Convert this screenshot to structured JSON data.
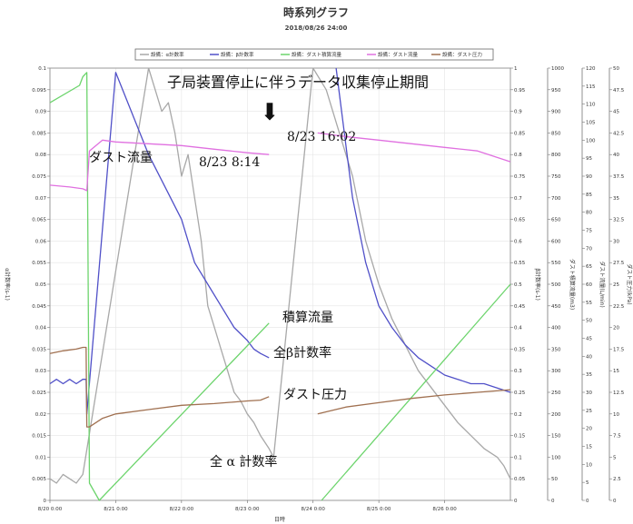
{
  "chart_data": {
    "type": "line",
    "title": "時系列グラフ",
    "subtitle": "2018/08/26 24:00",
    "xlabel": "日時",
    "x_ticks": [
      "8/20 0:00",
      "8/21 0:00",
      "8/22 0:00",
      "8/23 0:00",
      "8/24 0:00",
      "8/25 0:00",
      "8/26 0:00"
    ],
    "x_range_days": [
      20.0,
      27.0
    ],
    "legend_position": "top",
    "grid": true,
    "axes": {
      "alpha": {
        "label": "α計数率(s-1)",
        "range": [
          0,
          0.1
        ],
        "ticks": [
          "0",
          "0.005",
          "0.01",
          "0.015",
          "0.02",
          "0.025",
          "0.03",
          "0.035",
          "0.04",
          "0.045",
          "0.05",
          "0.055",
          "0.06",
          "0.065",
          "0.07",
          "0.075",
          "0.08",
          "0.085",
          "0.09",
          "0.095",
          "0.1"
        ]
      },
      "beta": {
        "label": "β計数率(s-1)",
        "range": [
          0,
          1
        ],
        "ticks": [
          "0",
          "0.05",
          "0.1",
          "0.15",
          "0.2",
          "0.25",
          "0.3",
          "0.35",
          "0.4",
          "0.45",
          "0.5",
          "0.55",
          "0.6",
          "0.65",
          "0.7",
          "0.75",
          "0.8",
          "0.85",
          "0.9",
          "0.95",
          "1"
        ]
      },
      "integrated": {
        "label": "ダスト積算流量(m3)",
        "range": [
          0,
          1000
        ],
        "ticks": [
          "0",
          "50",
          "100",
          "150",
          "200",
          "250",
          "300",
          "350",
          "400",
          "450",
          "500",
          "550",
          "600",
          "650",
          "700",
          "750",
          "800",
          "850",
          "900",
          "950",
          "1000"
        ]
      },
      "flow": {
        "label": "ダスト流量(L/min)",
        "range": [
          0,
          120
        ],
        "ticks": [
          "0",
          "5",
          "10",
          "15",
          "20",
          "25",
          "30",
          "35",
          "40",
          "45",
          "50",
          "55",
          "60",
          "65",
          "70",
          "75",
          "80",
          "85",
          "90",
          "95",
          "100",
          "105",
          "110",
          "115",
          "120"
        ]
      },
      "pressure": {
        "label": "ダスト圧力(kPa)",
        "range": [
          0,
          50
        ],
        "ticks": [
          "0",
          "2.5",
          "5",
          "7.5",
          "10",
          "12.5",
          "15",
          "17.5",
          "20",
          "22.5",
          "25",
          "27.5",
          "30",
          "32.5",
          "35",
          "37.5",
          "40",
          "42.5",
          "45",
          "47.5",
          "50"
        ]
      }
    },
    "series": [
      {
        "name": "設備：α計数率",
        "axis": "alpha",
        "color": "#a8a8a8",
        "x": [
          20.0,
          20.1,
          20.2,
          20.3,
          20.4,
          20.5,
          21.5,
          21.6,
          21.7,
          21.8,
          21.9,
          22.0,
          22.1,
          22.2,
          22.3,
          22.4,
          22.5,
          22.6,
          22.7,
          22.8,
          22.9,
          23.0,
          23.1,
          23.2,
          23.33,
          23.4,
          24.0,
          24.2,
          24.4,
          24.6,
          24.8,
          25.0,
          25.2,
          25.4,
          25.6,
          25.8,
          26.0,
          26.2,
          26.4,
          26.6,
          26.8,
          26.9,
          27.0
        ],
        "y": [
          0.005,
          0.004,
          0.006,
          0.005,
          0.004,
          0.006,
          0.1,
          0.095,
          0.09,
          0.092,
          0.085,
          0.075,
          0.08,
          0.07,
          0.06,
          0.045,
          0.04,
          0.035,
          0.03,
          0.025,
          0.023,
          0.02,
          0.018,
          0.015,
          0.012,
          0.01,
          0.1,
          0.095,
          0.085,
          0.075,
          0.06,
          0.05,
          0.042,
          0.036,
          0.03,
          0.026,
          0.022,
          0.018,
          0.015,
          0.012,
          0.01,
          0.008,
          0.005
        ]
      },
      {
        "name": "設備：β計数率",
        "axis": "beta",
        "color": "#5050c8",
        "x": [
          20.0,
          20.1,
          20.2,
          20.3,
          20.4,
          20.5,
          20.55,
          20.56,
          21.0,
          21.5,
          22.0,
          22.2,
          22.4,
          22.6,
          22.8,
          23.0,
          23.1,
          23.2,
          23.33,
          24.35,
          24.6,
          24.8,
          25.0,
          25.2,
          25.4,
          25.6,
          25.8,
          26.0,
          26.2,
          26.4,
          26.6,
          26.8,
          27.0
        ],
        "y": [
          0.27,
          0.28,
          0.27,
          0.28,
          0.27,
          0.28,
          0.28,
          0.2,
          0.99,
          0.8,
          0.65,
          0.55,
          0.5,
          0.45,
          0.4,
          0.37,
          0.35,
          0.34,
          0.33,
          1.0,
          0.7,
          0.55,
          0.45,
          0.4,
          0.36,
          0.33,
          0.31,
          0.29,
          0.28,
          0.27,
          0.27,
          0.26,
          0.25
        ]
      },
      {
        "name": "設備：ダスト積算流量",
        "axis": "integrated",
        "color": "#6cd46c",
        "x": [
          20.0,
          20.45,
          20.5,
          20.56,
          20.6,
          20.75,
          23.33,
          24.13,
          27.0
        ],
        "y": [
          920,
          960,
          980,
          990,
          40,
          0,
          410,
          0,
          500
        ]
      },
      {
        "name": "設備：ダスト流量",
        "axis": "flow",
        "color": "#e070e0",
        "x": [
          20.0,
          20.3,
          20.5,
          20.56,
          20.6,
          20.8,
          21.0,
          21.5,
          22.0,
          22.5,
          23.0,
          23.33,
          24.07,
          24.5,
          25.0,
          25.5,
          26.0,
          26.5,
          27.0
        ],
        "y": [
          87.5,
          87.0,
          86.5,
          86.0,
          97.0,
          100.0,
          99.5,
          99.0,
          98.5,
          97.5,
          96.5,
          96.0,
          102.0,
          101.0,
          100.0,
          99.0,
          98.0,
          97.0,
          94.0
        ]
      },
      {
        "name": "設備：ダスト圧力",
        "axis": "pressure",
        "color": "#a07050",
        "x": [
          20.0,
          20.2,
          20.4,
          20.5,
          20.55,
          20.56,
          20.6,
          20.8,
          21.0,
          21.5,
          22.0,
          22.5,
          23.0,
          23.2,
          23.33,
          24.07,
          24.5,
          25.0,
          25.5,
          26.0,
          26.5,
          27.0
        ],
        "y": [
          17.0,
          17.3,
          17.5,
          17.7,
          17.7,
          8.5,
          8.5,
          9.5,
          10.0,
          10.5,
          11.0,
          11.2,
          11.5,
          11.6,
          12.0,
          10.0,
          10.8,
          11.3,
          11.8,
          12.2,
          12.5,
          12.8
        ]
      }
    ],
    "annotations": {
      "banner": "子局装置停止に伴うデータ収集停止期間",
      "arrow": "⬇",
      "stop_time": "8/23 8:14",
      "restart_time": "8/23 16:02",
      "flow_label": "ダスト流量",
      "integrated_label": "積算流量",
      "beta_label": "全β計数率",
      "pressure_label": "ダスト圧力",
      "alpha_label": "全 α 計数率"
    }
  }
}
